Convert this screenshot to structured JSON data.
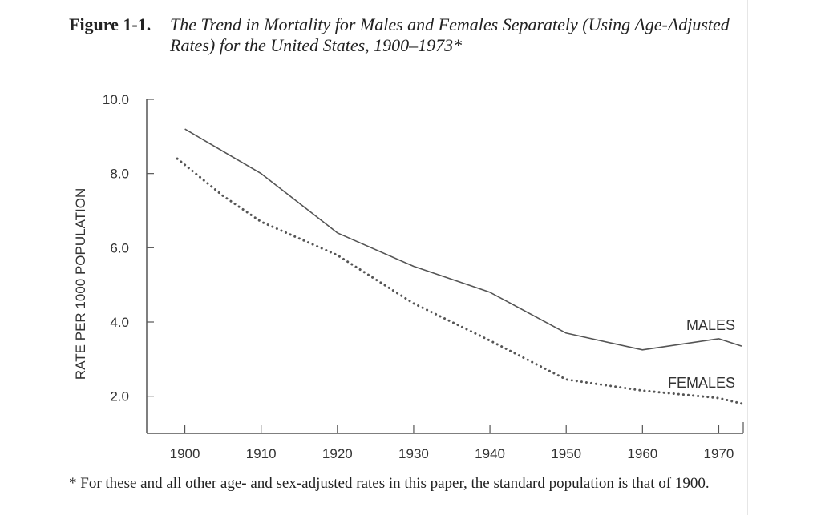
{
  "caption": {
    "label": "Figure 1-1.",
    "title": "The Trend in Mortality for Males and Females Separately (Using Age-Adjusted Rates) for the United States, 1900–1973*"
  },
  "footnote": "* For these and all other age- and sex-adjusted rates in this paper, the standard population is that of 1900.",
  "chart_data": {
    "type": "line",
    "title": "The Trend in Mortality for Males and Females Separately (Using Age-Adjusted Rates) for the United States, 1900–1973",
    "xlabel": "",
    "ylabel": "RATE PER 1000 POPULATION",
    "xlim": [
      1895,
      1973
    ],
    "ylim": [
      1.0,
      10.0
    ],
    "xticks": [
      1900,
      1910,
      1920,
      1930,
      1940,
      1950,
      1960,
      1970
    ],
    "xtick_labels": [
      "1900",
      "1910",
      "1920",
      "1930",
      "1940",
      "1950",
      "1960",
      "1970"
    ],
    "yticks": [
      2.0,
      4.0,
      6.0,
      8.0,
      10.0
    ],
    "ytick_labels": [
      "2.0",
      "4.0",
      "6.0",
      "8.0",
      "10.0"
    ],
    "grid": false,
    "series": [
      {
        "name": "MALES",
        "style": "solid",
        "color": "#555555",
        "x": [
          1900,
          1910,
          1920,
          1930,
          1940,
          1950,
          1960,
          1970,
          1973
        ],
        "values": [
          9.2,
          8.0,
          6.4,
          5.5,
          4.8,
          3.7,
          3.25,
          3.55,
          3.35
        ]
      },
      {
        "name": "FEMALES",
        "style": "dotted",
        "color": "#555555",
        "x": [
          1899,
          1905,
          1910,
          1920,
          1930,
          1940,
          1950,
          1960,
          1970,
          1973
        ],
        "values": [
          8.4,
          7.4,
          6.7,
          5.8,
          4.5,
          3.5,
          2.45,
          2.15,
          1.95,
          1.8
        ]
      }
    ]
  }
}
